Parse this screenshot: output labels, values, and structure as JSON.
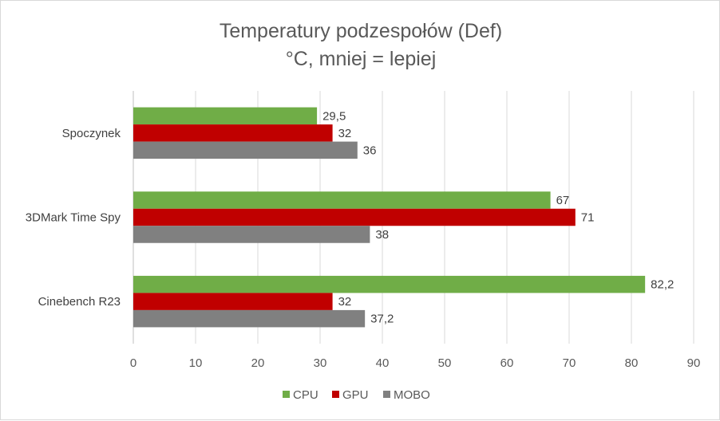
{
  "chart_data": {
    "type": "bar",
    "orientation": "horizontal",
    "title": "Temperatury podzespołów (Def)",
    "subtitle": "°C, mniej = lepiej",
    "categories": [
      "Spoczynek",
      "3DMark Time Spy",
      "Cinebench R23"
    ],
    "series": [
      {
        "name": "CPU",
        "color": "#70ad47",
        "values": [
          29.5,
          67,
          82.2
        ],
        "labels": [
          "29,5",
          "67",
          "82,2"
        ]
      },
      {
        "name": "GPU",
        "color": "#c00000",
        "values": [
          32,
          71,
          32
        ],
        "labels": [
          "32",
          "71",
          "32"
        ]
      },
      {
        "name": "MOBO",
        "color": "#808080",
        "values": [
          36,
          38,
          37.2
        ],
        "labels": [
          "36",
          "38",
          "37,2"
        ]
      }
    ],
    "xlim": [
      0,
      90
    ],
    "xticks": [
      0,
      10,
      20,
      30,
      40,
      50,
      60,
      70,
      80,
      90
    ],
    "grid": true,
    "legend_position": "bottom"
  }
}
